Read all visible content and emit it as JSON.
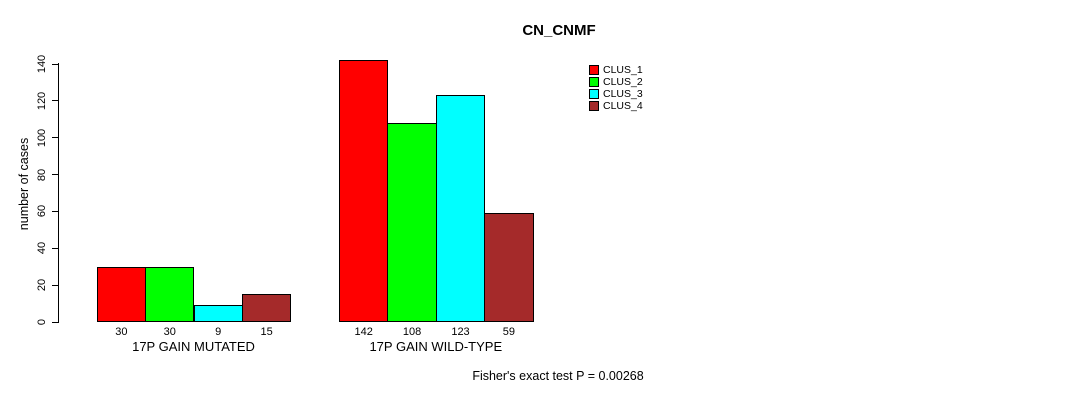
{
  "chart_data": {
    "type": "bar",
    "title": "CN_CNMF",
    "ylabel": "number of cases",
    "xlabel": "",
    "ylim": [
      0,
      140
    ],
    "yticks": [
      0,
      20,
      40,
      60,
      80,
      100,
      120,
      140
    ],
    "grid": false,
    "legend_position": "top-right",
    "categories": [
      "17P GAIN MUTATED",
      "17P GAIN WILD-TYPE"
    ],
    "series": [
      {
        "name": "CLUS_1",
        "color": "#FF0000",
        "values": [
          30,
          142
        ]
      },
      {
        "name": "CLUS_2",
        "color": "#00FF00",
        "values": [
          30,
          108
        ]
      },
      {
        "name": "CLUS_3",
        "color": "#00FFFF",
        "values": [
          9,
          123
        ]
      },
      {
        "name": "CLUS_4",
        "color": "#A52A2A",
        "values": [
          15,
          59
        ]
      }
    ],
    "bar_value_labels_shown": true,
    "footnote": "Fisher's exact test P = 0.00268",
    "text_color": "#000000",
    "background_color": "#FFFFFF"
  }
}
